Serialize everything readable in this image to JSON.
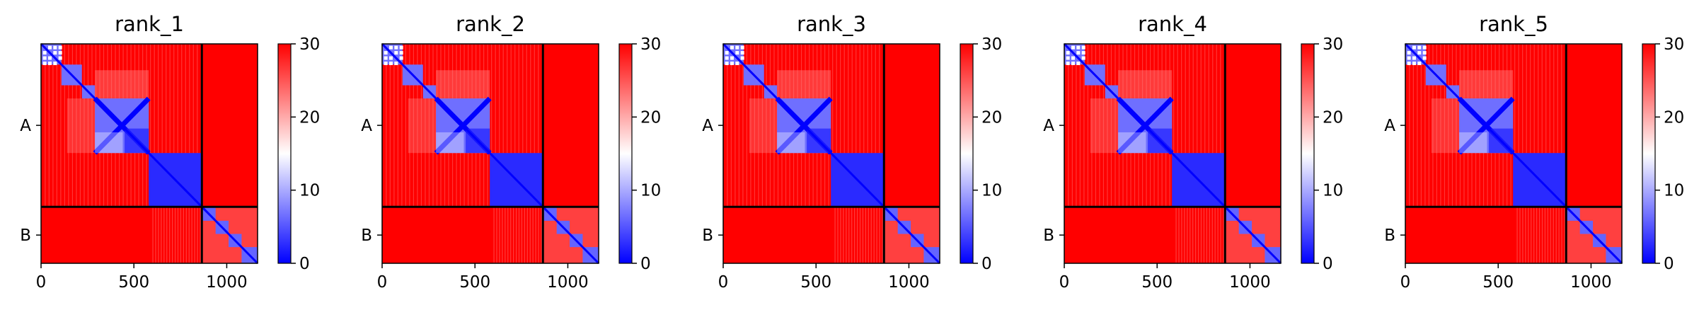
{
  "chart_data": {
    "type": "heatmap",
    "panels": [
      {
        "title": "rank_1"
      },
      {
        "title": "rank_2"
      },
      {
        "title": "rank_3"
      },
      {
        "title": "rank_4"
      },
      {
        "title": "rank_5"
      }
    ],
    "chain_labels": [
      "A",
      "B"
    ],
    "chain_boundary": 866,
    "total_length": 1166,
    "x_ticks": [
      0,
      500,
      1000
    ],
    "colorbar": {
      "min": 0,
      "max": 30,
      "ticks": [
        0,
        10,
        20,
        30
      ],
      "colors": [
        "#0000ff",
        "#ffffff",
        "#ff0000"
      ]
    },
    "domains_A": [
      [
        0,
        110
      ],
      [
        110,
        220
      ],
      [
        220,
        290
      ],
      [
        290,
        580
      ],
      [
        580,
        866
      ]
    ],
    "domains_B": [
      [
        866,
        940
      ],
      [
        940,
        1010
      ],
      [
        1010,
        1080
      ],
      [
        1080,
        1166
      ]
    ]
  }
}
